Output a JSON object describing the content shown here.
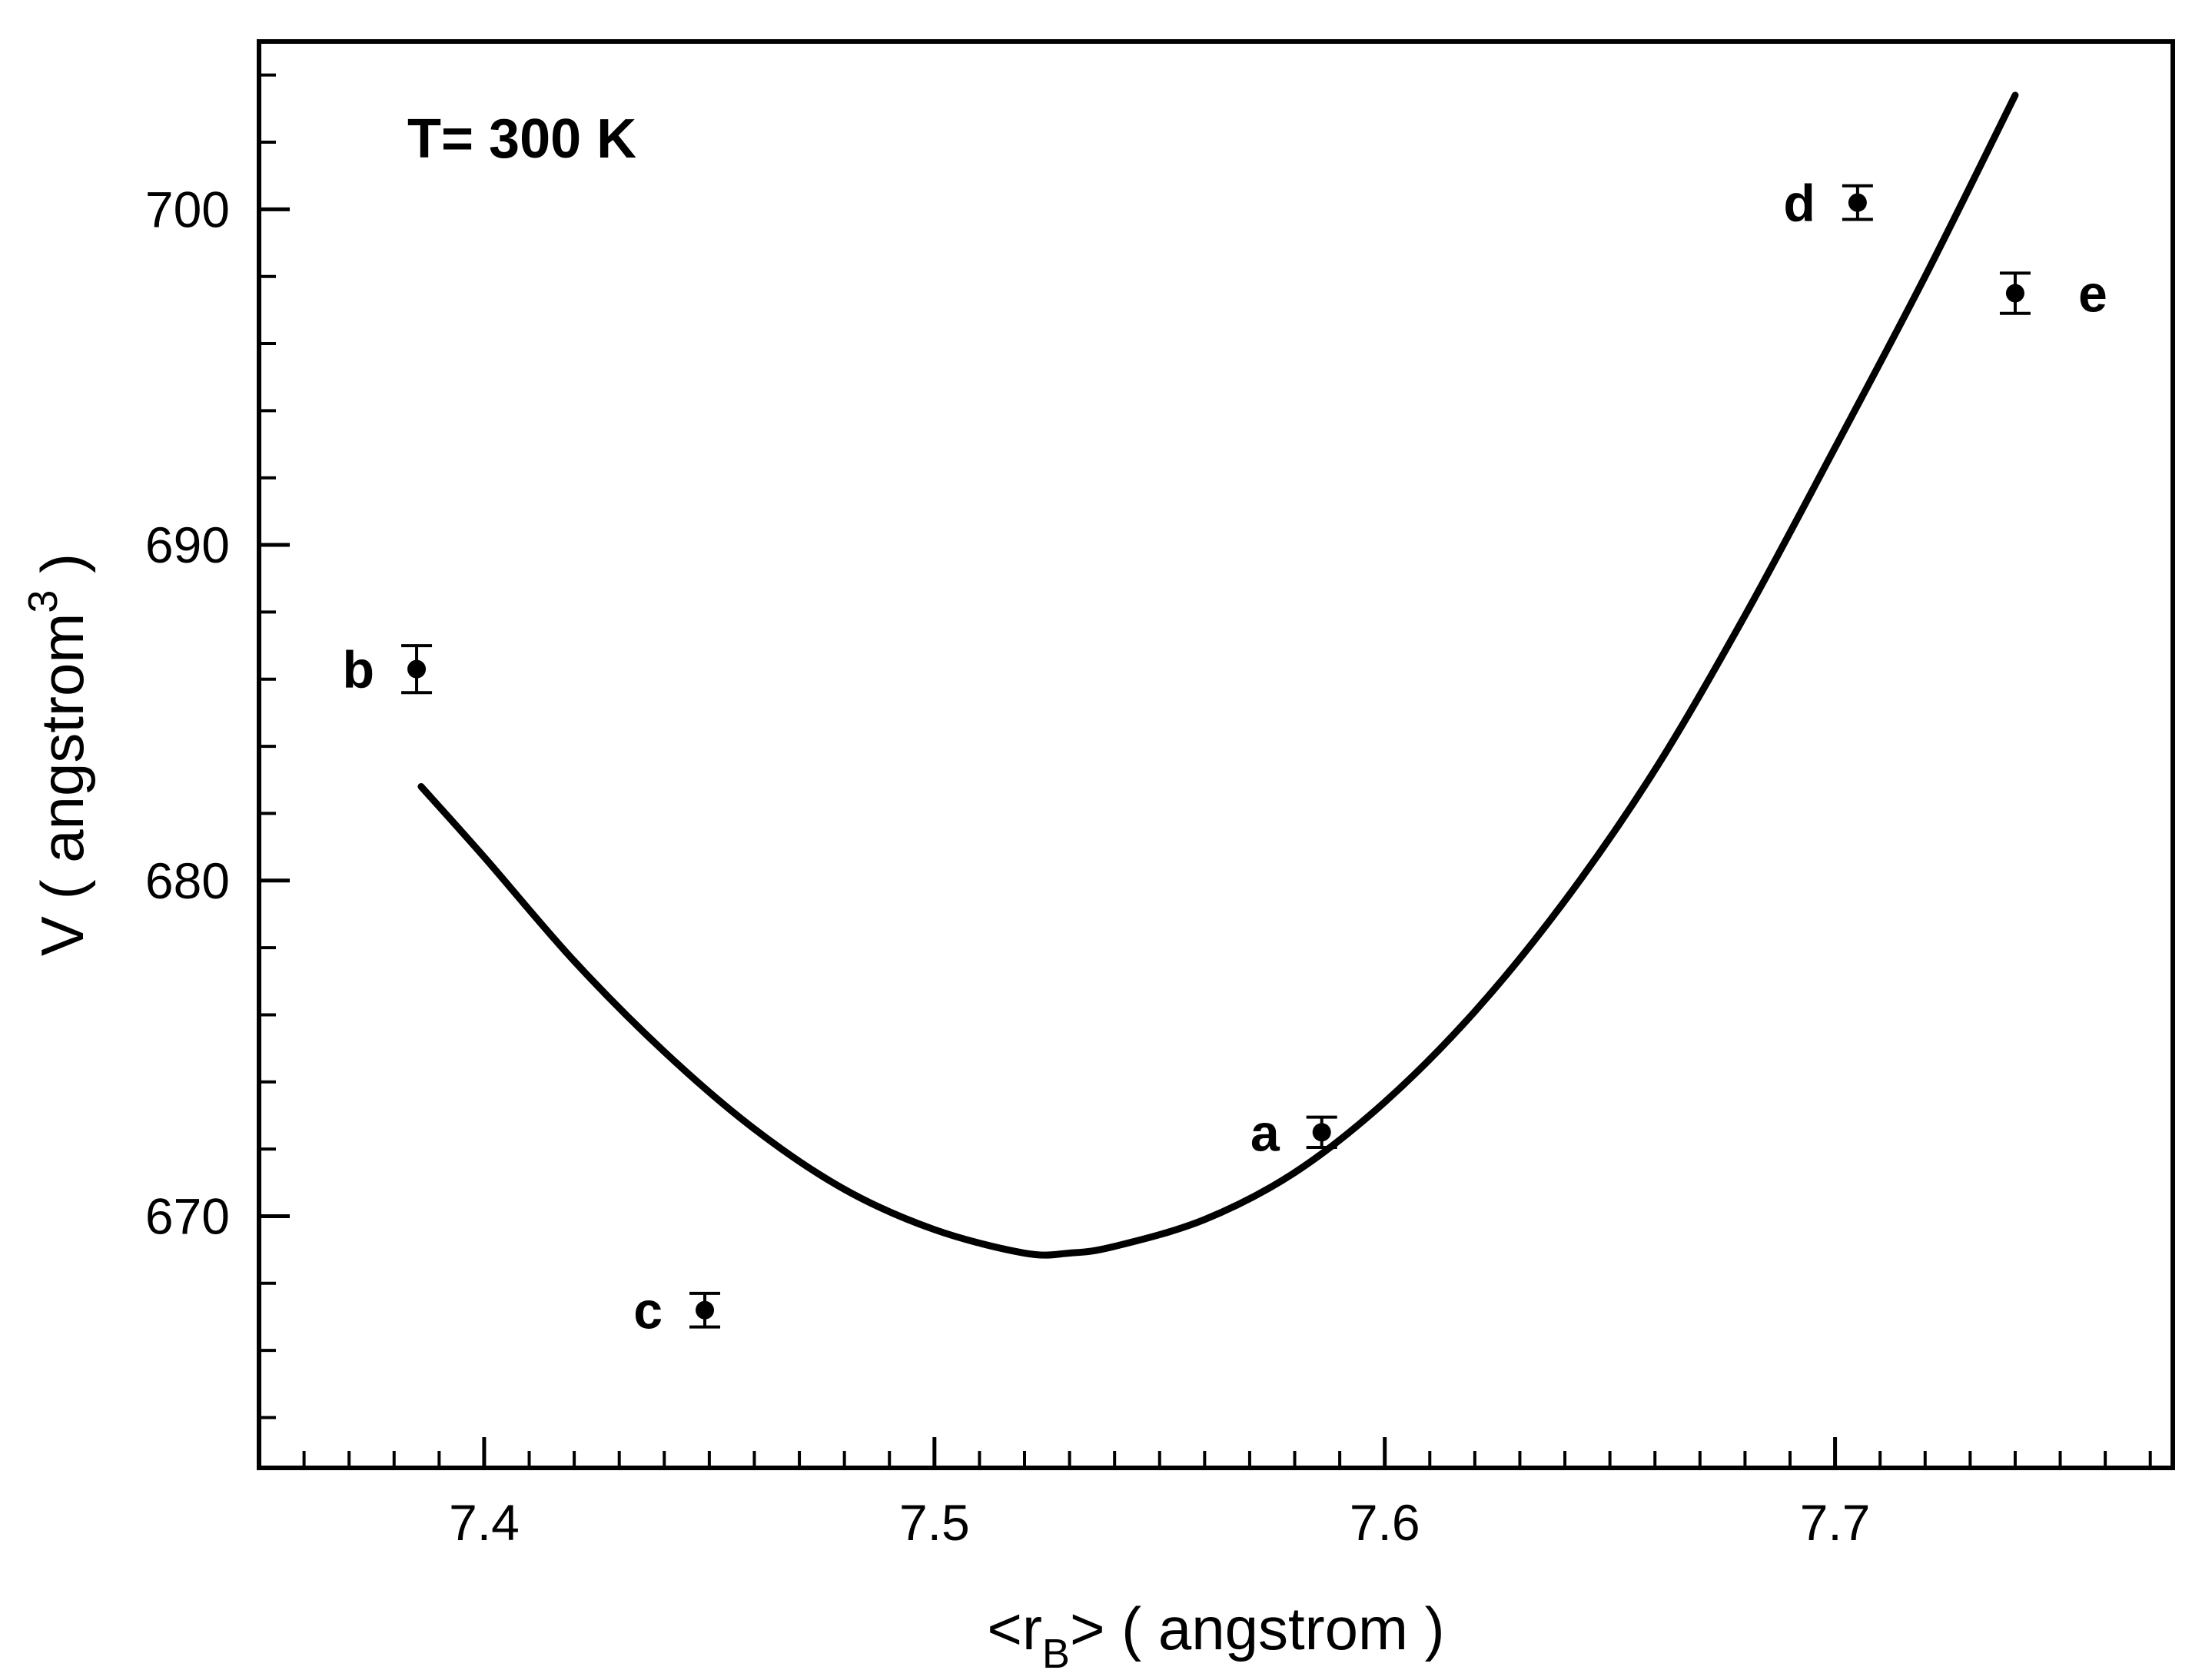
{
  "chart_data": {
    "type": "scatter",
    "annotation": "T= 300 K",
    "xlabel": {
      "prefix": "<r",
      "sub": "B",
      "suffix": "> ( angstrom )"
    },
    "ylabel": {
      "prefix": "V ( angstrom",
      "sup": "3",
      "suffix": " )"
    },
    "xlim": [
      7.35,
      7.775
    ],
    "ylim": [
      662.5,
      705
    ],
    "x_major_ticks": [
      7.4,
      7.5,
      7.6,
      7.7
    ],
    "x_tick_labels": [
      "7.4",
      "7.5",
      "7.6",
      "7.7"
    ],
    "x_minor_step": 0.01,
    "y_major_ticks": [
      670,
      680,
      690,
      700
    ],
    "y_tick_labels": [
      "670",
      "680",
      "690",
      "700"
    ],
    "y_minor_step": 2,
    "grid": false,
    "legend": "none",
    "points": [
      {
        "label": "a",
        "x": 7.586,
        "y": 672.5,
        "err": 0.45,
        "label_side": "left"
      },
      {
        "label": "b",
        "x": 7.385,
        "y": 686.3,
        "err": 0.7,
        "label_side": "left"
      },
      {
        "label": "c",
        "x": 7.449,
        "y": 667.2,
        "err": 0.5,
        "label_side": "left"
      },
      {
        "label": "d",
        "x": 7.705,
        "y": 700.2,
        "err": 0.5,
        "label_side": "left"
      },
      {
        "label": "e",
        "x": 7.74,
        "y": 697.5,
        "err": 0.6,
        "label_side": "right"
      }
    ],
    "fit_curve": {
      "x_range": [
        7.386,
        7.74
      ],
      "points": [
        [
          7.386,
          682.8
        ],
        [
          7.4,
          680.7
        ],
        [
          7.42,
          677.6
        ],
        [
          7.44,
          674.9
        ],
        [
          7.46,
          672.6
        ],
        [
          7.48,
          670.8
        ],
        [
          7.5,
          669.6
        ],
        [
          7.52,
          668.9
        ],
        [
          7.53,
          668.9
        ],
        [
          7.54,
          669.1
        ],
        [
          7.56,
          669.9
        ],
        [
          7.58,
          671.3
        ],
        [
          7.6,
          673.4
        ],
        [
          7.62,
          676.1
        ],
        [
          7.64,
          679.4
        ],
        [
          7.66,
          683.3
        ],
        [
          7.68,
          687.9
        ],
        [
          7.7,
          692.9
        ],
        [
          7.72,
          698.0
        ],
        [
          7.74,
          703.4
        ]
      ]
    },
    "colors": {
      "axis": "#000000",
      "marker": "#000000",
      "curve": "#000000"
    }
  }
}
